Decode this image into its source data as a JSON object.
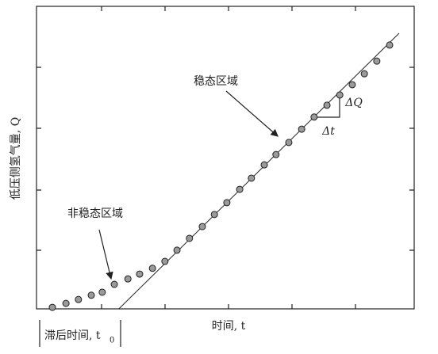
{
  "chart_data": {
    "type": "scatter",
    "x_label": "时间, t",
    "y_label": "低压侧氢气量, Q",
    "annotations": [
      "稳态区域",
      "非稳态区域",
      "ΔQ",
      "Δt",
      "滞后时间, t",
      "0"
    ],
    "xlim": [
      0,
      100
    ],
    "ylim": [
      0,
      100
    ],
    "series": [
      {
        "color": "#9a9a9a",
        "x": [
          4.2,
          7.8,
          11.1,
          14.5,
          17.4,
          20.6,
          24.2,
          27.3,
          30.7,
          34.0,
          37.2,
          40.5,
          43.9,
          47.1,
          50.4,
          53.8,
          56.9,
          60.3,
          63.4,
          66.8,
          70.2,
          73.5,
          76.9,
          80.3,
          83.6,
          86.8,
          90.1,
          93.5
        ],
        "values": [
          0.5,
          1.8,
          3.1,
          4.5,
          5.5,
          8.1,
          9.9,
          11.5,
          13.4,
          15.7,
          19.4,
          23.3,
          27.2,
          31.2,
          35.1,
          39.5,
          43.2,
          47.6,
          51.0,
          55.0,
          59.4,
          63.4,
          67.3,
          70.7,
          74.1,
          77.7,
          81.9,
          87.2
        ]
      }
    ],
    "fit_line": {
      "x": [
        21.8,
        96.0
      ],
      "values": [
        0,
        91.1
      ]
    }
  }
}
